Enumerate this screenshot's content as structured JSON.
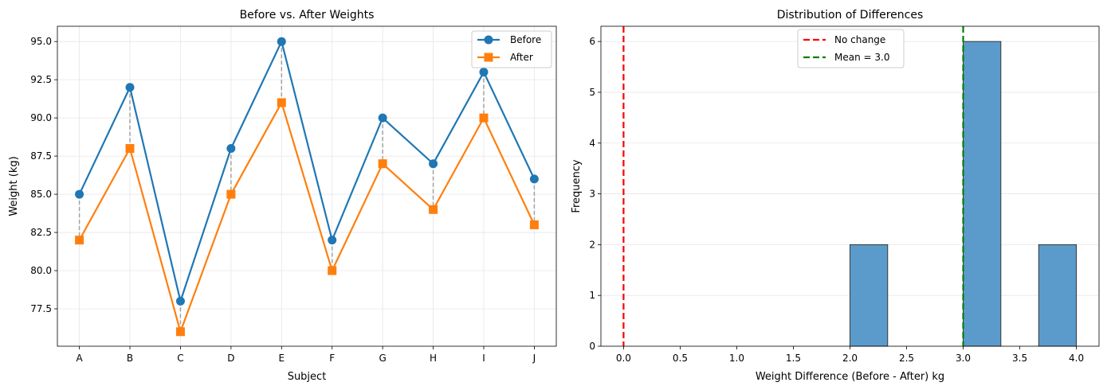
{
  "chart_data": [
    {
      "type": "line",
      "title": "Before vs. After Weights",
      "xlabel": "Subject",
      "ylabel": "Weight (kg)",
      "categories": [
        "A",
        "B",
        "C",
        "D",
        "E",
        "F",
        "G",
        "H",
        "I",
        "J"
      ],
      "series": [
        {
          "name": "Before",
          "color": "#1f77b4",
          "marker": "circle",
          "values": [
            85,
            92,
            78,
            88,
            95,
            82,
            90,
            87,
            93,
            86
          ]
        },
        {
          "name": "After",
          "color": "#ff7f0e",
          "marker": "square",
          "values": [
            82,
            88,
            76,
            85,
            91,
            80,
            87,
            84,
            90,
            83
          ]
        }
      ],
      "connector_color": "#7f7f7f",
      "ylim": [
        75.05,
        96.0
      ],
      "yticks": [
        77.5,
        80.0,
        82.5,
        85.0,
        87.5,
        90.0,
        92.5,
        95.0
      ],
      "ytick_labels": [
        "77.5",
        "80.0",
        "82.5",
        "85.0",
        "87.5",
        "90.0",
        "92.5",
        "95.0"
      ],
      "grid": true,
      "legend": "top-right"
    },
    {
      "type": "bar",
      "subtype": "histogram",
      "title": "Distribution of Differences",
      "xlabel": "Weight Difference (Before - After) kg",
      "ylabel": "Frequency",
      "bins": [
        {
          "start": 2.0,
          "end": 2.333,
          "count": 2
        },
        {
          "start": 3.0,
          "end": 3.333,
          "count": 6
        },
        {
          "start": 3.667,
          "end": 4.0,
          "count": 2
        }
      ],
      "bar_color": "#5b9bcb",
      "xlim": [
        -0.2,
        4.2
      ],
      "ylim": [
        0,
        6.3
      ],
      "xticks": [
        0.0,
        0.5,
        1.0,
        1.5,
        2.0,
        2.5,
        3.0,
        3.5,
        4.0
      ],
      "xtick_labels": [
        "0.0",
        "0.5",
        "1.0",
        "1.5",
        "2.0",
        "2.5",
        "3.0",
        "3.5",
        "4.0"
      ],
      "yticks": [
        0,
        1,
        2,
        3,
        4,
        5,
        6
      ],
      "ytick_labels": [
        "0",
        "1",
        "2",
        "3",
        "4",
        "5",
        "6"
      ],
      "reference_lines": [
        {
          "label": "No change",
          "x": 0.0,
          "color": "#ff0000"
        },
        {
          "label": "Mean = 3.0",
          "x": 3.0,
          "color": "#008000"
        }
      ],
      "grid": true,
      "legend": "top-center"
    }
  ]
}
